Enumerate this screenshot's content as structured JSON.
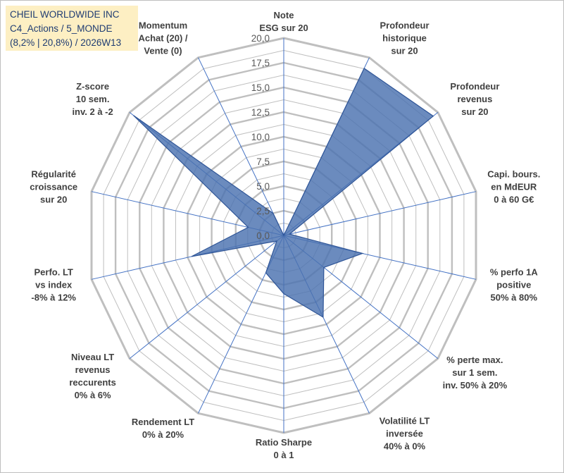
{
  "title_box": {
    "line1": "CHEIL WORLDWIDE INC",
    "line2": "C4_Actions / 5_MONDE",
    "line3": "(8,2% | 20,8%) / 2026W13"
  },
  "chart_data": {
    "type": "radar",
    "title": "CHEIL WORLDWIDE INC",
    "rmin": 0,
    "rmax": 20,
    "ticks": [
      "0,0",
      "2,5",
      "5,0",
      "7,5",
      "10,0",
      "12,5",
      "15,0",
      "17,5",
      "20,0"
    ],
    "tick_values": [
      0,
      2.5,
      5,
      7.5,
      10,
      12.5,
      15,
      17.5,
      20
    ],
    "categories": [
      [
        "Note",
        "ESG sur 20"
      ],
      [
        "Profondeur",
        "historique",
        "sur 20"
      ],
      [
        "Profondeur",
        "revenus",
        "sur 20"
      ],
      [
        "Capi. bours.",
        "en MdEUR",
        "0 à 60 G€"
      ],
      [
        "% perfo 1A",
        "positive",
        "50% à 80%"
      ],
      [
        "% perte max.",
        "sur 1 sem.",
        "inv. 50% à 20%"
      ],
      [
        "Volatilité LT",
        "inversée",
        "40% à 0%"
      ],
      [
        "Ratio Sharpe",
        "0 à 1"
      ],
      [
        "Rendement LT",
        "0% à 20%"
      ],
      [
        "Niveau LT",
        "revenus",
        "reccurents",
        "0% à 6%"
      ],
      [
        "Perfo. LT",
        "vs index",
        "-8% à 12%"
      ],
      [
        "Régularité",
        "croissance",
        "sur 20"
      ],
      [
        "Z-score",
        "10 sem.",
        "inv. 2 à -2"
      ],
      [
        "Momentum",
        "Achat (20) /",
        "Vente (0)"
      ]
    ],
    "series": [
      {
        "name": "CHEIL WORLDWIDE INC",
        "values": [
          0,
          18.8,
          19.4,
          0.6,
          8.2,
          5.2,
          9.2,
          5.9,
          4.2,
          0.9,
          9.6,
          3.7,
          19.5,
          2.5
        ]
      }
    ],
    "colors": {
      "fill": "#4a72b0",
      "stroke": "#2f5597",
      "spoke": "#4472c4",
      "grid": "#bfbfbf",
      "title_bg": "#fdefc3",
      "title_text": "#1f3c72"
    }
  }
}
